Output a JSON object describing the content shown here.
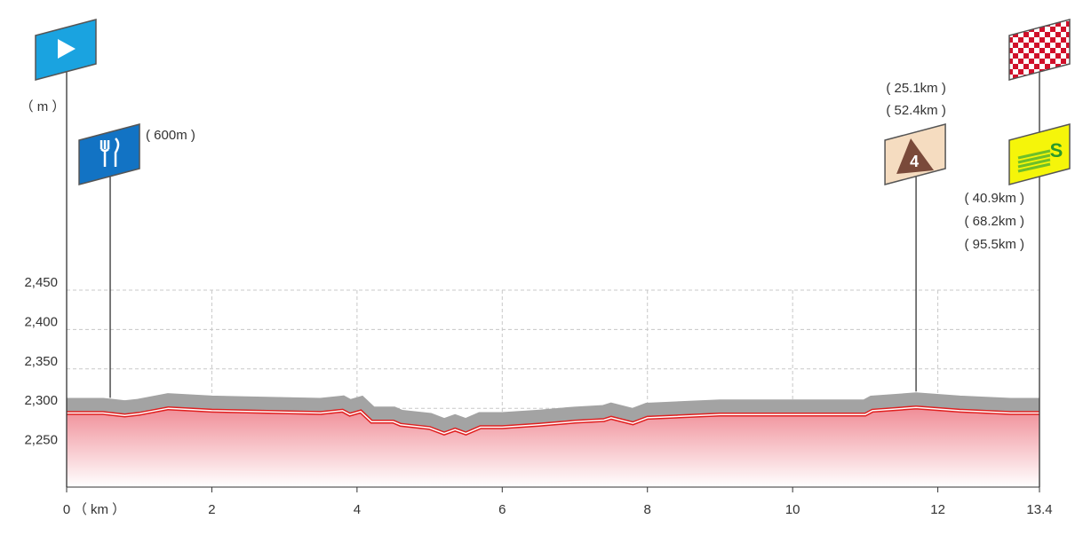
{
  "chart_data": {
    "type": "profile",
    "x_unit": "（ km ）",
    "y_unit": "（ m ）",
    "xlim": [
      0,
      13.4
    ],
    "xticks": [
      0,
      2,
      4,
      6,
      8,
      10,
      12,
      13.4
    ],
    "ylim": [
      2200,
      2450
    ],
    "yticks": [
      {
        "value": 2250,
        "label": "2,250"
      },
      {
        "value": 2300,
        "label": "2,300"
      },
      {
        "value": 2350,
        "label": "2,350"
      },
      {
        "value": 2400,
        "label": "2,400"
      },
      {
        "value": 2450,
        "label": "2,450"
      }
    ],
    "grid": true,
    "color": "#e02020",
    "x": [
      0,
      0.5,
      0.8,
      1.0,
      1.4,
      2,
      3.5,
      3.8,
      3.9,
      4.05,
      4.2,
      4.5,
      4.6,
      5.0,
      5.2,
      5.35,
      5.5,
      5.7,
      6,
      6.5,
      7,
      7.4,
      7.5,
      7.8,
      8,
      9,
      11,
      11.1,
      11.7,
      12.3,
      13,
      13.4
    ],
    "values": [
      2294,
      2294,
      2291,
      2293,
      2300,
      2297,
      2294,
      2297,
      2292,
      2296,
      2283,
      2283,
      2279,
      2275,
      2268,
      2273,
      2268,
      2276,
      2276,
      2279,
      2283,
      2285,
      2288,
      2281,
      2288,
      2292,
      2292,
      2297,
      2301,
      2297,
      2294,
      2294
    ],
    "markers": [
      {
        "icon": "start",
        "km": 0
      },
      {
        "icon": "feed",
        "km": 0.6,
        "labels": [
          "( 600m )"
        ]
      },
      {
        "icon": "climb",
        "km": 11.7,
        "category": "4",
        "labels": [
          "( 25.1km )",
          "( 52.4km )"
        ]
      },
      {
        "icon": "finish",
        "km": 13.4
      },
      {
        "icon": "sprint",
        "km": 13.4,
        "labels": [
          "( 40.9km )",
          "( 68.2km )",
          "( 95.5km )"
        ]
      }
    ]
  }
}
